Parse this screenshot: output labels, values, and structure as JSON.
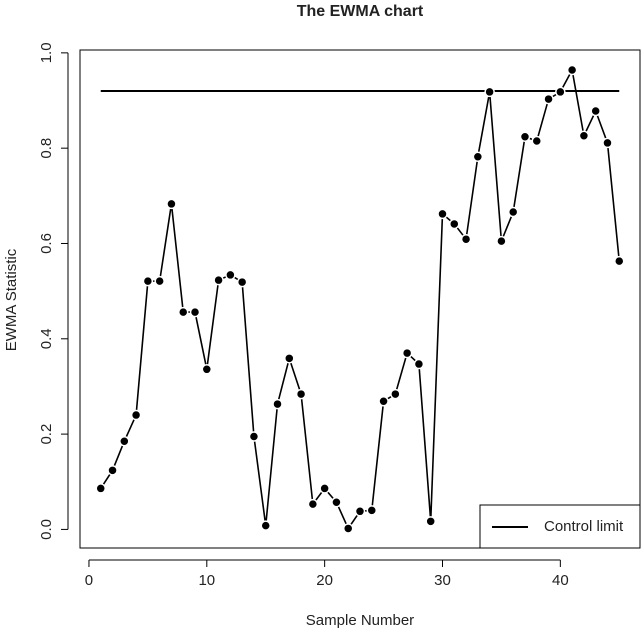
{
  "chart_data": {
    "type": "line",
    "title": "The EWMA chart",
    "x_label": "Sample Number",
    "y_label": "EWMA Statistic",
    "x": [
      1,
      2,
      3,
      4,
      5,
      6,
      7,
      8,
      9,
      10,
      11,
      12,
      13,
      14,
      15,
      16,
      17,
      18,
      19,
      20,
      21,
      22,
      23,
      24,
      25,
      26,
      27,
      28,
      29,
      30,
      31,
      32,
      33,
      34,
      35,
      36,
      37,
      38,
      39,
      40,
      41,
      42,
      43,
      44,
      45
    ],
    "series": [
      {
        "name": "EWMA Statistic",
        "color": "#000000",
        "values": [
          0.086,
          0.124,
          0.185,
          0.24,
          0.521,
          0.521,
          0.683,
          0.456,
          0.456,
          0.336,
          0.523,
          0.534,
          0.519,
          0.195,
          0.008,
          0.263,
          0.359,
          0.284,
          0.053,
          0.086,
          0.057,
          0.002,
          0.038,
          0.04,
          0.269,
          0.284,
          0.37,
          0.347,
          0.017,
          0.662,
          0.641,
          0.609,
          0.782,
          0.918,
          0.605,
          0.666,
          0.824,
          0.815,
          0.903,
          0.918,
          0.964,
          0.826,
          0.878,
          0.811,
          0.563
        ]
      }
    ],
    "control_limit": {
      "name": "Control limit",
      "value": 0.92,
      "color": "#000000"
    },
    "xlim": [
      -0.76,
      46.76
    ],
    "xticks": [
      0,
      10,
      20,
      30,
      40
    ],
    "ylim": [
      -0.039,
      1.006
    ],
    "yticks": [
      {
        "value": 0,
        "label": "0.0"
      },
      0.2,
      0.4,
      0.6,
      0.8,
      {
        "value": 1,
        "label": "1.0"
      }
    ],
    "legend": "bottom-right"
  }
}
